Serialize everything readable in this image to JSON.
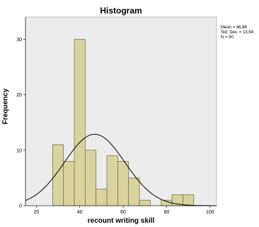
{
  "chart_data": {
    "type": "bar",
    "title": "Histogram",
    "xlabel": "recount writing skill",
    "ylabel": "Frequency",
    "xlim": [
      15,
      103
    ],
    "ylim": [
      0,
      34
    ],
    "xticks": [
      "20",
      "40",
      "60",
      "80",
      "100"
    ],
    "yticks": [
      "0",
      "10",
      "20",
      "30"
    ],
    "bins": [
      {
        "start": 27.5,
        "end": 32.5,
        "count": 11
      },
      {
        "start": 32.5,
        "end": 37.5,
        "count": 8
      },
      {
        "start": 37.5,
        "end": 42.5,
        "count": 30
      },
      {
        "start": 42.5,
        "end": 47.5,
        "count": 10
      },
      {
        "start": 47.5,
        "end": 52.5,
        "count": 3
      },
      {
        "start": 52.5,
        "end": 57.5,
        "count": 9
      },
      {
        "start": 57.5,
        "end": 62.5,
        "count": 8
      },
      {
        "start": 62.5,
        "end": 67.5,
        "count": 5
      },
      {
        "start": 67.5,
        "end": 72.5,
        "count": 1
      },
      {
        "start": 77.5,
        "end": 82.5,
        "count": 1
      },
      {
        "start": 82.5,
        "end": 87.5,
        "count": 2
      },
      {
        "start": 87.5,
        "end": 92.5,
        "count": 2
      }
    ],
    "normal_curve": {
      "mean": 46.86,
      "sd": 13.94,
      "n": 90,
      "bin_width": 5
    },
    "stats_text": [
      "Mean = 46,86",
      "Std. Dev. = 13,94",
      "N = 90"
    ],
    "colors": {
      "bar_fill": "#d9d3a0",
      "bar_stroke": "#6b6b40",
      "plot_bg": "#ececec",
      "curve": "#000000"
    },
    "grid": false,
    "legend": "none"
  }
}
